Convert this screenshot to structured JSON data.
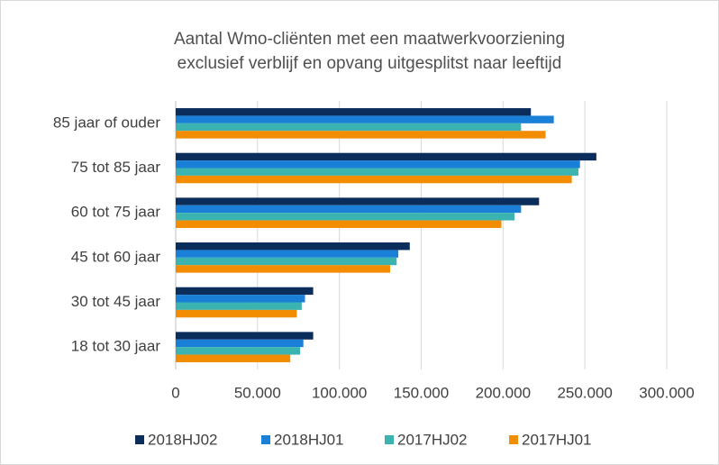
{
  "chart_data": {
    "type": "bar",
    "orientation": "horizontal",
    "title": [
      "Aantal Wmo-cliënten met een maatwerkvoorziening",
      "exclusief verblijf en opvang uitgesplitst naar leeftijd"
    ],
    "categories": [
      "85 jaar of ouder",
      "75 tot 85 jaar",
      "60 tot 75 jaar",
      "45 tot 60 jaar",
      "30 tot 45 jaar",
      "18 tot 30 jaar"
    ],
    "series": [
      {
        "name": "2018HJ02",
        "color": "#0b2d5b",
        "values": [
          217000,
          257000,
          222000,
          143000,
          84000,
          84000
        ]
      },
      {
        "name": "2018HJ01",
        "color": "#1a7fd6",
        "values": [
          231000,
          247000,
          211000,
          136000,
          79000,
          78000
        ]
      },
      {
        "name": "2017HJ02",
        "color": "#3bb3b0",
        "values": [
          211000,
          246000,
          207000,
          135000,
          77000,
          76000
        ]
      },
      {
        "name": "2017HJ01",
        "color": "#f28c00",
        "values": [
          226000,
          242000,
          199000,
          131000,
          74000,
          70000
        ]
      }
    ],
    "xlim": [
      0,
      300000
    ],
    "xticks": [
      0,
      {
        "value": 50000,
        "label": "50.000"
      },
      {
        "value": 100000,
        "label": "100.000"
      },
      {
        "value": 150000,
        "label": "150.000"
      },
      {
        "value": 200000,
        "label": "200.000"
      },
      {
        "value": 250000,
        "label": "250.000"
      },
      {
        "value": 300000,
        "label": "300.000"
      }
    ],
    "grid": true,
    "legend": "bottom"
  }
}
